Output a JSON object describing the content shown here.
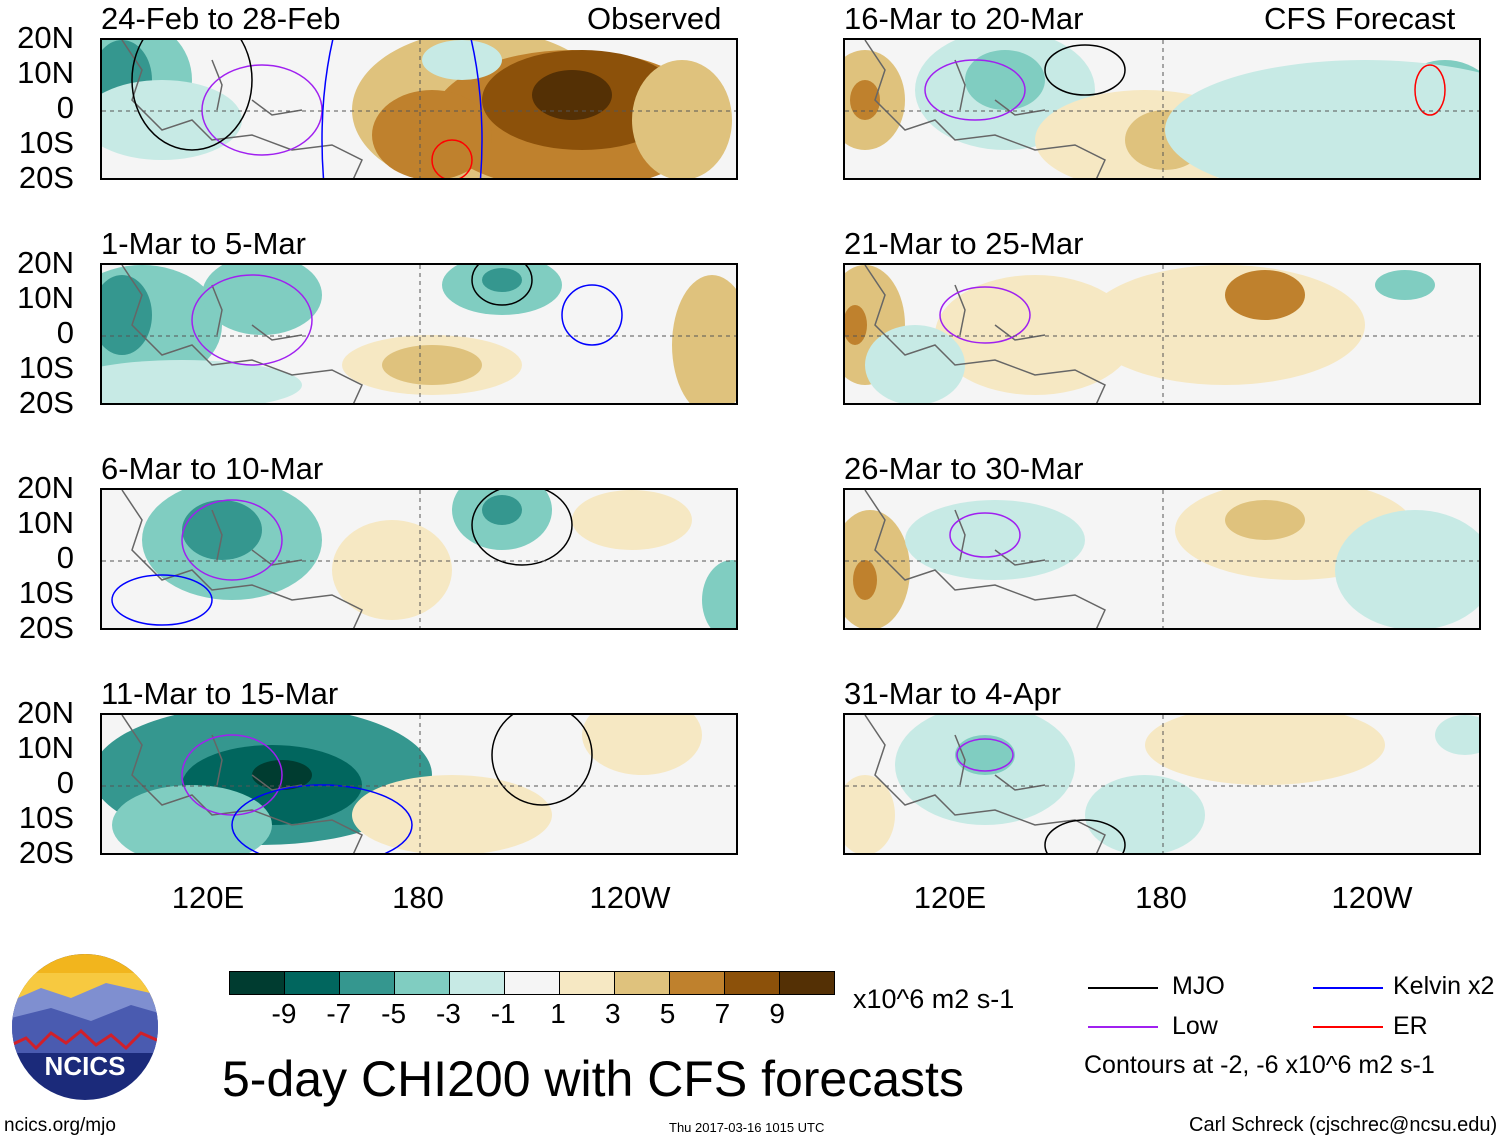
{
  "header": {
    "observed_label": "Observed",
    "forecast_label": "CFS Forecast"
  },
  "panels": [
    {
      "title": "24-Feb to 28-Feb",
      "column": "observed"
    },
    {
      "title": "1-Mar to 5-Mar",
      "column": "observed"
    },
    {
      "title": "6-Mar to 10-Mar",
      "column": "observed"
    },
    {
      "title": "11-Mar to 15-Mar",
      "column": "observed"
    },
    {
      "title": "16-Mar to 20-Mar",
      "column": "forecast"
    },
    {
      "title": "21-Mar to 25-Mar",
      "column": "forecast"
    },
    {
      "title": "26-Mar to 30-Mar",
      "column": "forecast"
    },
    {
      "title": "31-Mar to 4-Apr",
      "column": "forecast"
    }
  ],
  "axes": {
    "lat_labels": [
      "20N",
      "10N",
      "0",
      "10S",
      "20S"
    ],
    "lon_labels": [
      "120E",
      "180",
      "120W"
    ]
  },
  "colorbar": {
    "colors": [
      "#003c30",
      "#01665e",
      "#35978f",
      "#80cdc1",
      "#c7eae5",
      "#f5f5f5",
      "#f6e8c3",
      "#dfc27d",
      "#bf812d",
      "#8c510a",
      "#543005"
    ],
    "ticks": [
      "-9",
      "-7",
      "-5",
      "-3",
      "-1",
      "1",
      "3",
      "5",
      "7",
      "9"
    ],
    "units": "x10^6 m2 s-1"
  },
  "legend": {
    "items": [
      {
        "label": "MJO",
        "color": "#000000"
      },
      {
        "label": "Kelvin x2",
        "color": "#0000ff"
      },
      {
        "label": "Low",
        "color": "#a020f0"
      },
      {
        "label": "ER",
        "color": "#ff0000"
      }
    ],
    "contours_note": "Contours at -2, -6 x10^6 m2 s-1"
  },
  "title": "5-day CHI200 with CFS forecasts",
  "logo_text": "NCICS",
  "footer": {
    "url": "ncics.org/mjo",
    "timestamp": "Thu 2017-03-16 1015 UTC",
    "author": "Carl Schreck (cjschrec@ncsu.edu)"
  }
}
